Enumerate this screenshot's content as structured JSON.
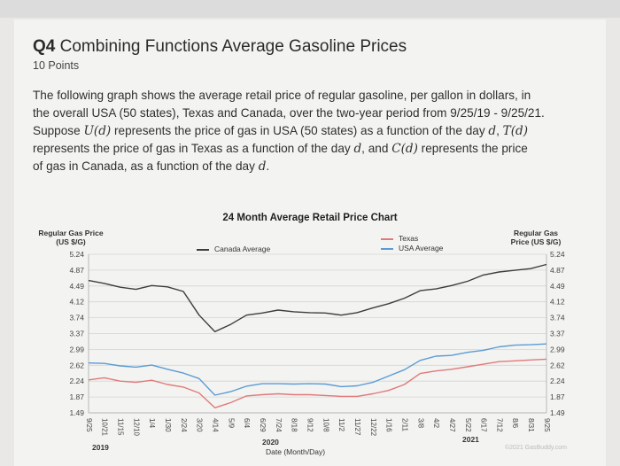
{
  "header": {
    "title_bold": "Q4",
    "title_rest": " Combining Functions Average Gasoline Prices",
    "points": "10 Points"
  },
  "question": {
    "line1": "The following graph shows the average retail price of regular gasoline, per gallon in dollars, in",
    "line2": "the overall USA (50 states), Texas and Canada, over the two-year period from 9/25/19 - 9/25/21.",
    "line3a": "Suppose ",
    "u_d": "U(d)",
    "line3b": " represents the price of gas in USA (50 states) as a function of the day ",
    "d1": "d",
    "comma": ", ",
    "t_d": "T(d)",
    "line4a": "represents the price of gas in Texas as a function of the day ",
    "d2": "d",
    "line4b": ", and ",
    "c_d": "C(d)",
    "line4c": " represents the price",
    "line5a": "of gas in Canada, as a function of the day ",
    "d3": "d",
    "line5b": "."
  },
  "chart_data": {
    "type": "line",
    "title": "24 Month Average Retail Price Chart",
    "ylabel_left": "Regular Gas Price (US $/G)",
    "ylabel_right": "Regular Gas Price (US $/G)",
    "xlabel": "Date (Month/Day)",
    "year_labels": [
      "2019",
      "2020",
      "2021"
    ],
    "yticks_left": [
      "5.24",
      "4.87",
      "4.49",
      "4.12",
      "3.74",
      "3.37",
      "2.99",
      "2.62",
      "2.24",
      "1.87",
      "1.49"
    ],
    "yticks_right": [
      "5.24",
      "4.87",
      "4.49",
      "4.12",
      "3.74",
      "3.37",
      "2.99",
      "2.62",
      "2.24",
      "1.87",
      "1.49"
    ],
    "ylim": [
      1.49,
      5.24
    ],
    "categories": [
      "9/25",
      "10/21",
      "11/15",
      "12/10",
      "1/4",
      "1/30",
      "2/24",
      "3/20",
      "4/14",
      "5/9",
      "6/4",
      "6/29",
      "7/24",
      "8/18",
      "9/12",
      "10/8",
      "11/2",
      "11/27",
      "12/22",
      "1/16",
      "2/11",
      "3/8",
      "4/2",
      "4/27",
      "5/22",
      "6/17",
      "7/12",
      "8/6",
      "8/31",
      "9/25"
    ],
    "series": [
      {
        "name": "Canada Average",
        "color": "#3d3d3d",
        "values": [
          4.62,
          4.55,
          4.46,
          4.41,
          4.5,
          4.47,
          4.36,
          3.8,
          3.41,
          3.58,
          3.8,
          3.85,
          3.92,
          3.88,
          3.86,
          3.85,
          3.8,
          3.86,
          3.97,
          4.07,
          4.2,
          4.38,
          4.42,
          4.5,
          4.6,
          4.75,
          4.82,
          4.86,
          4.9,
          5.0
        ]
      },
      {
        "name": "Texas",
        "color": "#e07a7a",
        "values": [
          2.27,
          2.32,
          2.24,
          2.21,
          2.26,
          2.16,
          2.1,
          1.96,
          1.61,
          1.73,
          1.89,
          1.92,
          1.94,
          1.92,
          1.92,
          1.9,
          1.88,
          1.88,
          1.94,
          2.02,
          2.16,
          2.42,
          2.48,
          2.52,
          2.58,
          2.64,
          2.7,
          2.72,
          2.74,
          2.76
        ]
      },
      {
        "name": "USA Average",
        "color": "#5b9bd5",
        "values": [
          2.67,
          2.66,
          2.6,
          2.57,
          2.62,
          2.52,
          2.43,
          2.3,
          1.91,
          1.99,
          2.12,
          2.18,
          2.18,
          2.17,
          2.18,
          2.17,
          2.11,
          2.13,
          2.21,
          2.36,
          2.51,
          2.73,
          2.83,
          2.85,
          2.92,
          2.97,
          3.05,
          3.09,
          3.1,
          3.12
        ]
      }
    ],
    "legend_placement": "top"
  },
  "watermark": "©2021 GasBuddy.com"
}
